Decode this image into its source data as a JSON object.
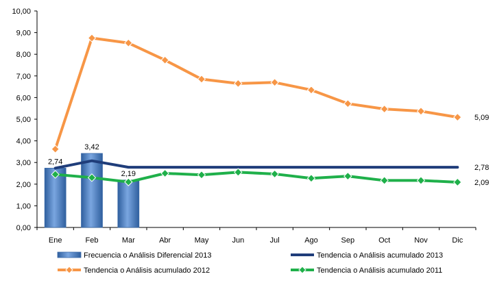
{
  "chart_data": {
    "type": "bar",
    "categories": [
      "Ene",
      "Feb",
      "Mar",
      "Abr",
      "May",
      "Jun",
      "Jul",
      "Ago",
      "Sep",
      "Oct",
      "Nov",
      "Dic"
    ],
    "ylim": [
      0,
      10
    ],
    "yticks": [
      "0,00",
      "1,00",
      "2,00",
      "3,00",
      "4,00",
      "5,00",
      "6,00",
      "7,00",
      "8,00",
      "9,00",
      "10,00"
    ],
    "grid": false,
    "legend_position": "bottom",
    "series": [
      {
        "name": "Frecuencia o Análisis Diferencial 2013",
        "kind": "bar",
        "color": "#4f81bd",
        "values": [
          2.74,
          3.42,
          2.19,
          null,
          null,
          null,
          null,
          null,
          null,
          null,
          null,
          null
        ],
        "labels": [
          "2,74",
          "3,42",
          "2,19",
          "",
          "",
          "",
          "",
          "",
          "",
          "",
          "",
          ""
        ]
      },
      {
        "name": "Tendencia o Análisis acumulado 2013",
        "kind": "line",
        "color": "#1f3d7a",
        "marker": "none",
        "values": [
          2.74,
          3.08,
          2.78,
          2.78,
          2.78,
          2.78,
          2.78,
          2.78,
          2.78,
          2.78,
          2.78,
          2.78
        ],
        "end_label": "2,78"
      },
      {
        "name": "Tendencia o Análisis acumulado 2012",
        "kind": "line",
        "color": "#f79646",
        "marker": "diamond",
        "values": [
          3.62,
          8.75,
          8.52,
          7.73,
          6.85,
          6.65,
          6.7,
          6.35,
          5.72,
          5.47,
          5.37,
          5.09
        ],
        "end_label": "5,09"
      },
      {
        "name": "Tendencia o Análisis acumulado 2011",
        "kind": "line",
        "color": "#1fb04a",
        "marker": "diamond",
        "values": [
          2.45,
          2.3,
          2.1,
          2.5,
          2.43,
          2.55,
          2.47,
          2.27,
          2.37,
          2.17,
          2.17,
          2.09
        ],
        "end_label": "2,09"
      }
    ]
  }
}
